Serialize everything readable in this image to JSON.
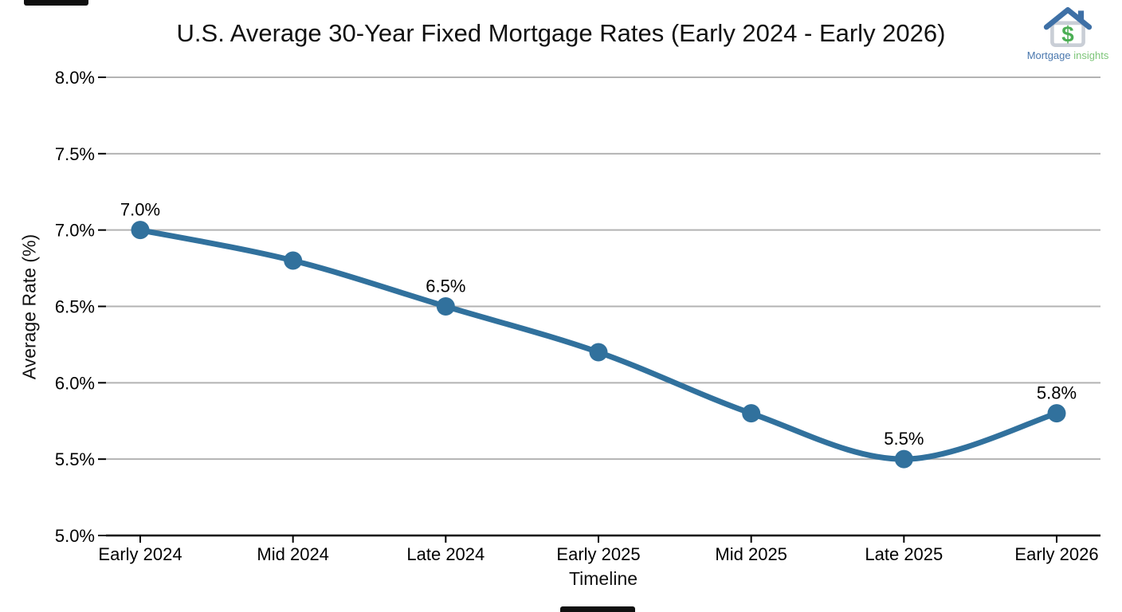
{
  "header": {
    "title": "U.S. Average 30-Year Fixed Mortgage Rates (Early 2024 - Early 2026)"
  },
  "logo": {
    "icon": "house-dollar-icon",
    "text_primary": "Mortgage",
    "text_secondary": "insights",
    "colors": {
      "roof": "#3e70a6",
      "wall": "#c9ced6",
      "dollar": "#4bae54",
      "text_primary": "#4a78ae",
      "text_secondary": "#7cc578"
    }
  },
  "chart_data": {
    "type": "line",
    "title": "U.S. Average 30-Year Fixed Mortgage Rates (Early 2024 - Early 2026)",
    "xlabel": "Timeline",
    "ylabel": "Average Rate (%)",
    "categories": [
      "Early 2024",
      "Mid 2024",
      "Late 2024",
      "Early 2025",
      "Mid 2025",
      "Late 2025",
      "Early 2026"
    ],
    "values": [
      7.0,
      6.8,
      6.5,
      6.2,
      5.8,
      5.5,
      5.8
    ],
    "point_labels": [
      "7.0%",
      null,
      "6.5%",
      null,
      null,
      "5.5%",
      "5.8%"
    ],
    "ylim": [
      5.0,
      8.0
    ],
    "yticks": [
      "5.0%",
      "5.5%",
      "6.0%",
      "6.5%",
      "7.0%",
      "7.5%",
      "8.0%"
    ],
    "ytick_values": [
      5.0,
      5.5,
      6.0,
      6.5,
      7.0,
      7.5,
      8.0
    ],
    "grid": true,
    "legend": false,
    "marker": "circle",
    "line_color": "#31719d",
    "grid_color": "#b3b3b3",
    "axis_color": "#000000",
    "text_color": "#000000"
  }
}
